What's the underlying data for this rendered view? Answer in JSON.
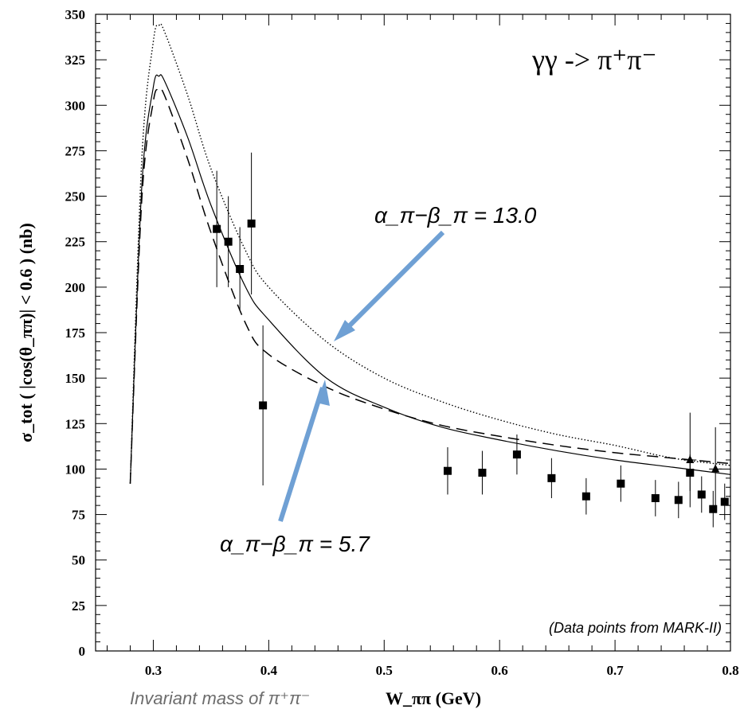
{
  "chart_data": {
    "type": "scatter",
    "reaction_label": "γγ -> π⁺π⁻",
    "ylabel": "σ_tot ( |cos(θ_ππ)| < 0.6 )  (nb)",
    "xlabel_prefix": "Invariant mass of π⁺π⁻",
    "xlabel": "W_ππ  (GeV)",
    "credit": "(Data points from MARK-II)",
    "xlim": [
      0.25,
      0.8
    ],
    "ylim": [
      0,
      350
    ],
    "x_ticks": [
      "0.3",
      "0.4",
      "0.5",
      "0.6",
      "0.7",
      "0.8"
    ],
    "y_ticks": [
      "0",
      "25",
      "50",
      "75",
      "100",
      "125",
      "150",
      "175",
      "200",
      "225",
      "250",
      "275",
      "300",
      "325",
      "350"
    ],
    "annotations": [
      {
        "text": "α_π−β_π = 13.0",
        "points_to_series": "dotted"
      },
      {
        "text": "α_π−β_π = 5.7",
        "points_to_series": "dashed"
      }
    ],
    "series": [
      {
        "style": "dotted",
        "x": [
          0.28,
          0.29,
          0.3,
          0.305,
          0.31,
          0.33,
          0.35,
          0.38,
          0.4,
          0.45,
          0.5,
          0.55,
          0.6,
          0.65,
          0.7,
          0.75,
          0.8
        ],
        "y": [
          92,
          270,
          335,
          344,
          340,
          305,
          265,
          220,
          200,
          170,
          150,
          137,
          127,
          119,
          113,
          106,
          102
        ]
      },
      {
        "style": "solid",
        "x": [
          0.28,
          0.29,
          0.3,
          0.305,
          0.31,
          0.33,
          0.35,
          0.38,
          0.4,
          0.45,
          0.5,
          0.55,
          0.6,
          0.65,
          0.7,
          0.75,
          0.8
        ],
        "y": [
          92,
          255,
          310,
          316,
          313,
          282,
          245,
          200,
          182,
          150,
          134,
          123,
          116,
          110,
          105,
          101,
          97
        ]
      },
      {
        "style": "dashed",
        "x": [
          0.28,
          0.29,
          0.3,
          0.305,
          0.31,
          0.33,
          0.35,
          0.38,
          0.4,
          0.45,
          0.5,
          0.55,
          0.6,
          0.65,
          0.7,
          0.75,
          0.8
        ],
        "y": [
          92,
          248,
          302,
          308,
          305,
          270,
          230,
          180,
          163,
          145,
          133,
          124,
          118,
          113,
          109,
          106,
          103
        ]
      }
    ],
    "data_points": {
      "marker": "square",
      "x": [
        0.355,
        0.365,
        0.375,
        0.385,
        0.395,
        0.555,
        0.585,
        0.615,
        0.645,
        0.675,
        0.705,
        0.735,
        0.755,
        0.765,
        0.775,
        0.785,
        0.795
      ],
      "y": [
        232,
        225,
        210,
        235,
        135,
        99,
        98,
        108,
        95,
        85,
        92,
        84,
        83,
        98,
        86,
        78,
        82
      ],
      "yerr": [
        32,
        25,
        23,
        39,
        44,
        13,
        12,
        11,
        11,
        10,
        10,
        10,
        10,
        10,
        10,
        10,
        10
      ]
    },
    "extra_points": {
      "marker": "triangle",
      "x": [
        0.765,
        0.787
      ],
      "y": [
        105,
        100
      ],
      "yerr": [
        26,
        23
      ]
    }
  }
}
